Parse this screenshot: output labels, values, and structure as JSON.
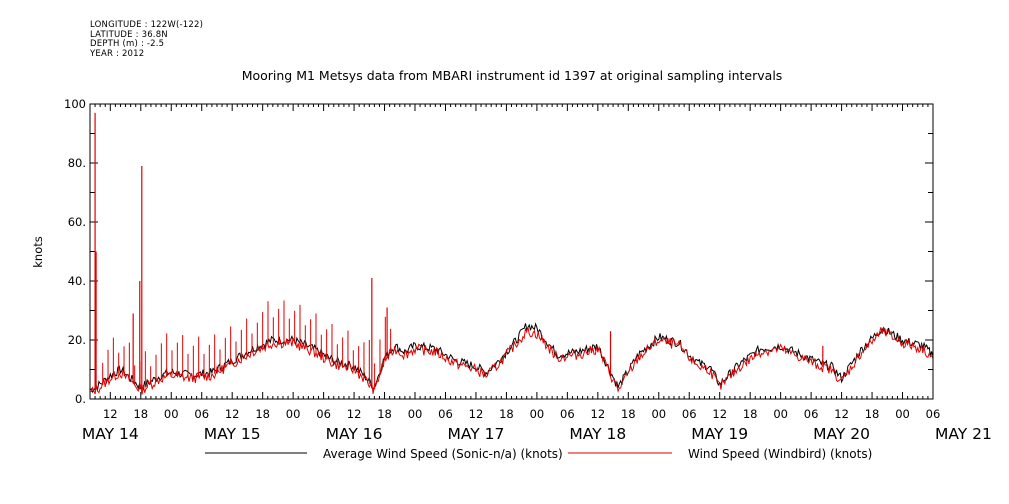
{
  "meta": {
    "longitude": "LONGITUDE : 122W(-122)",
    "latitude": "LATITUDE : 36.8N",
    "depth": "DEPTH (m) : -2.5",
    "year": "YEAR : 2012"
  },
  "chart_data": {
    "type": "line",
    "title": "Mooring M1 Metsys data from MBARI instrument id 1397 at original sampling intervals",
    "ylabel": "knots",
    "xlabel": "",
    "ylim": [
      0,
      100
    ],
    "xlim_hours": [
      8,
      174
    ],
    "y_ticks": [
      "0.",
      "20.",
      "40.",
      "60.",
      "80.",
      "100"
    ],
    "hour_ticks": [
      "12",
      "18",
      "00",
      "06",
      "12",
      "18",
      "00",
      "06",
      "12",
      "18",
      "00",
      "06",
      "12",
      "18",
      "00",
      "06",
      "12",
      "18",
      "00",
      "06",
      "12",
      "18",
      "00",
      "06",
      "12",
      "18",
      "00",
      "06"
    ],
    "date_labels": [
      "MAY 14",
      "MAY 15",
      "MAY 16",
      "MAY 17",
      "MAY 18",
      "MAY 19",
      "MAY 20",
      "MAY 21"
    ],
    "grid": false,
    "legend_position": "bottom",
    "colors": {
      "average": "#000000",
      "windbird": "#e00000"
    },
    "series": [
      {
        "name": "Average Wind Speed (Sonic-n/a) (knots)",
        "x_hours": [
          8,
          10,
          12,
          14,
          16,
          18,
          20,
          22,
          24,
          28,
          32,
          36,
          40,
          44,
          48,
          52,
          56,
          60,
          62,
          64,
          66,
          68,
          70,
          72,
          76,
          80,
          84,
          86,
          88,
          90,
          92,
          94,
          96,
          100,
          104,
          108,
          112,
          116,
          120,
          124,
          126,
          128,
          130,
          132,
          136,
          140,
          144,
          148,
          152,
          154,
          156,
          160,
          164,
          168,
          172,
          174
        ],
        "values": [
          3,
          5,
          8,
          10,
          7,
          4,
          6,
          8,
          9,
          8,
          9,
          13,
          17,
          20,
          20,
          17,
          13,
          11,
          8,
          4,
          14,
          18,
          16,
          18,
          17,
          13,
          11,
          9,
          12,
          16,
          20,
          25,
          24,
          15,
          16,
          18,
          4,
          15,
          21,
          19,
          15,
          12,
          11,
          5,
          12,
          17,
          18,
          15,
          12,
          11,
          7,
          17,
          24,
          20,
          18,
          15
        ]
      },
      {
        "name": "Wind Speed (Windbird) (knots)",
        "x_hours": [
          8,
          10,
          12,
          14,
          16,
          18,
          20,
          22,
          24,
          28,
          32,
          36,
          40,
          44,
          48,
          52,
          56,
          60,
          62,
          64,
          66,
          68,
          70,
          72,
          76,
          80,
          84,
          86,
          88,
          90,
          92,
          94,
          96,
          100,
          104,
          108,
          112,
          116,
          120,
          124,
          126,
          128,
          130,
          132,
          136,
          140,
          144,
          148,
          152,
          154,
          156,
          160,
          164,
          168,
          172,
          174
        ],
        "values": [
          2,
          4,
          7,
          9,
          6,
          3,
          5,
          7,
          8,
          7,
          8,
          12,
          16,
          19,
          19,
          16,
          12,
          10,
          7,
          3,
          13,
          17,
          15,
          17,
          16,
          12,
          10,
          8,
          11,
          15,
          19,
          23,
          22,
          14,
          15,
          17,
          3,
          14,
          20,
          18,
          14,
          11,
          10,
          4,
          11,
          16,
          17,
          14,
          11,
          10,
          6,
          16,
          23,
          19,
          17,
          14
        ],
        "spikes": [
          {
            "x_hour": 9,
            "value": 97
          },
          {
            "x_hour": 9.2,
            "value": 50
          },
          {
            "x_hour": 17.8,
            "value": 40
          },
          {
            "x_hour": 18.2,
            "value": 79
          },
          {
            "x_hour": 16.5,
            "value": 29
          },
          {
            "x_hour": 63.5,
            "value": 41
          },
          {
            "x_hour": 66.5,
            "value": 31
          },
          {
            "x_hour": 110.5,
            "value": 23
          },
          {
            "x_hour": 152.3,
            "value": 18
          }
        ]
      }
    ]
  }
}
